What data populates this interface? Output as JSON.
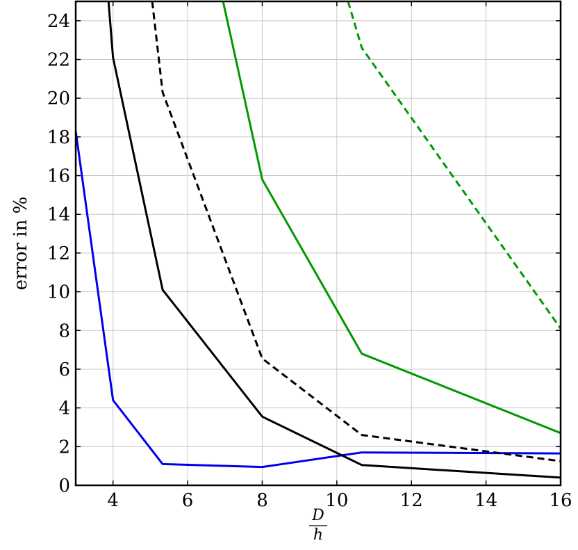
{
  "chart_data": {
    "type": "line",
    "title": "",
    "xlabel": {
      "numerator": "D",
      "denominator": "h"
    },
    "ylabel": "error in %",
    "xlim": [
      3,
      16
    ],
    "ylim": [
      0,
      25
    ],
    "x_ticks": [
      4,
      6,
      8,
      10,
      12,
      14,
      16
    ],
    "y_ticks": [
      0,
      2,
      4,
      6,
      8,
      10,
      12,
      14,
      16,
      18,
      20,
      22,
      24
    ],
    "grid": true,
    "legend": "none",
    "series": [
      {
        "color": "#0000ee",
        "dash": "solid",
        "x": [
          3,
          4,
          5.33,
          8,
          10.67,
          16
        ],
        "y": [
          18.3,
          4.4,
          1.1,
          0.95,
          1.7,
          1.65
        ]
      },
      {
        "color": "#000000",
        "dash": "solid",
        "x": [
          3.88,
          4,
          5.33,
          8,
          10.67,
          16
        ],
        "y": [
          25,
          22.1,
          10.1,
          3.55,
          1.05,
          0.4
        ]
      },
      {
        "color": "#000000",
        "dash": "dashed",
        "x": [
          5.05,
          5.33,
          8,
          10.67,
          16
        ],
        "y": [
          25,
          20.3,
          6.55,
          2.6,
          1.25
        ]
      },
      {
        "color": "#009900",
        "dash": "solid",
        "x": [
          6.95,
          8,
          10.67,
          16
        ],
        "y": [
          25,
          15.8,
          6.8,
          2.7
        ]
      },
      {
        "color": "#009900",
        "dash": "dashed",
        "x": [
          10.3,
          10.67,
          16
        ],
        "y": [
          25,
          22.6,
          8.1
        ]
      }
    ]
  }
}
